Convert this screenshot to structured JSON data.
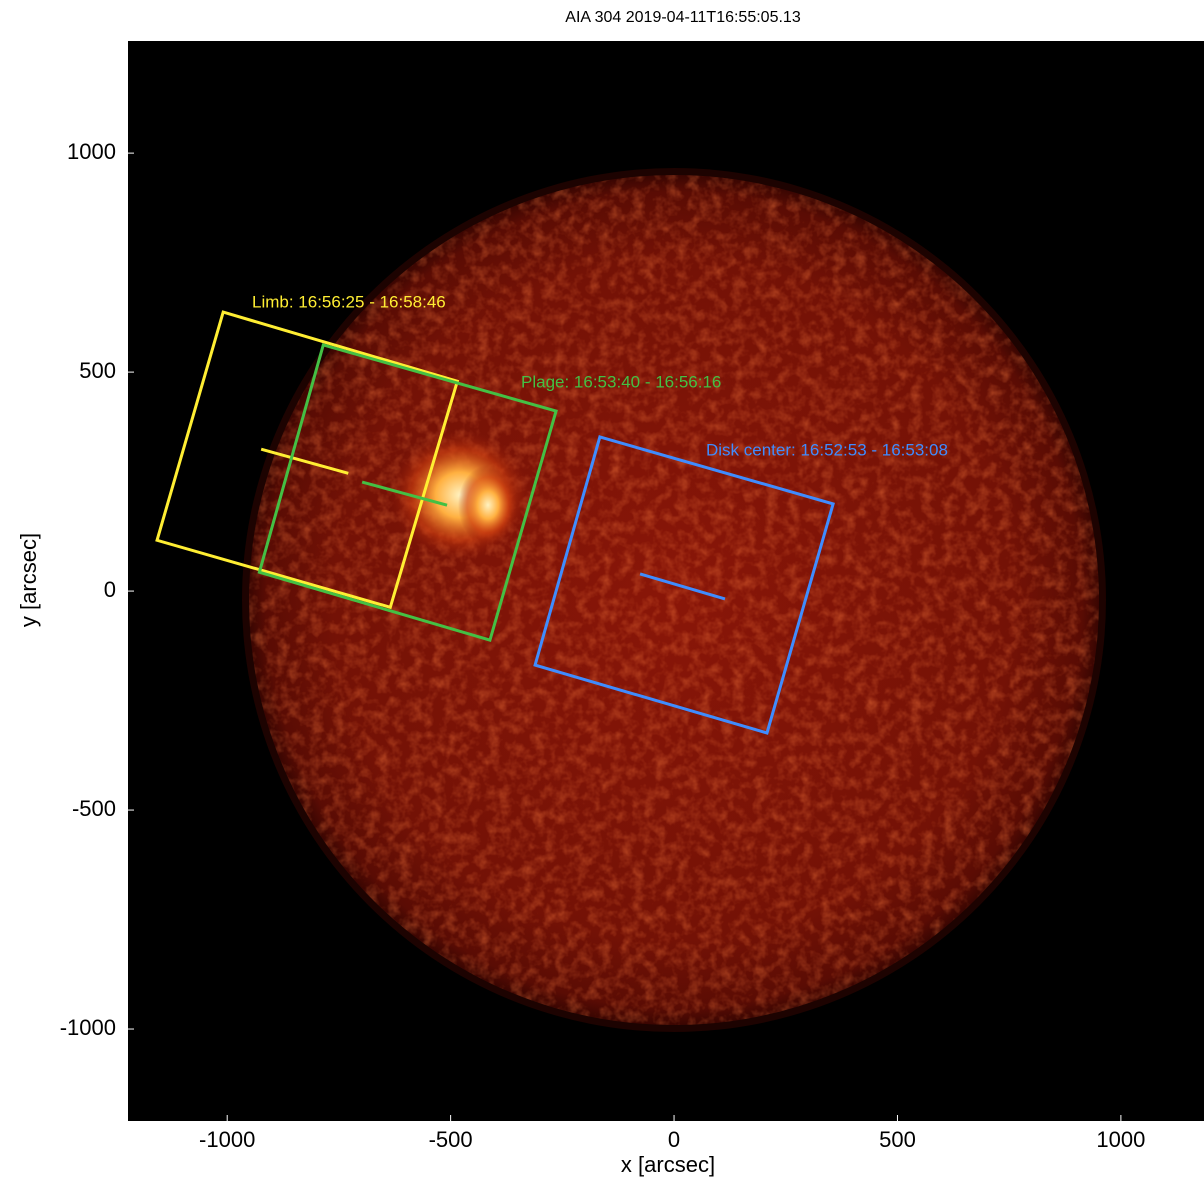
{
  "chart_data": {
    "type": "image",
    "title": "AIA 304 2019-04-11T16:55:05.13",
    "x_label": "x [arcsec]",
    "y_label": "y [arcsec]",
    "xlim": [
      -1222,
      1186
    ],
    "ylim": [
      -1210,
      1256
    ],
    "xticks": [
      -1000,
      -500,
      0,
      500,
      1000
    ],
    "yticks": [
      -1000,
      -500,
      0,
      500,
      1000
    ],
    "series": [
      {
        "name": "Limb: 16:56:25 - 16:58:46",
        "color": "#ffee33",
        "x": [
          -1009,
          -485,
          -635,
          -1157
        ],
        "y": [
          637,
          479,
          -37,
          116
        ],
        "slit": {
          "x": [
            -924,
            -729
          ],
          "y": [
            324,
            269
          ]
        }
      },
      {
        "name": "Plage: 16:53:40 - 16:56:16",
        "color": "#44c044",
        "x": [
          -785,
          -264,
          -412,
          -928
        ],
        "y": [
          562,
          411,
          -112,
          43
        ],
        "slit": {
          "x": [
            -698,
            -508
          ],
          "y": [
            249,
            196
          ]
        }
      },
      {
        "name": "Disk center: 16:52:53 - 16:53:08",
        "color": "#3f8cff",
        "x": [
          -166,
          356,
          208,
          -311
        ],
        "y": [
          352,
          199,
          -324,
          -169
        ],
        "slit": {
          "x": [
            -76,
            114
          ],
          "y": [
            39,
            -18
          ]
        }
      }
    ]
  }
}
